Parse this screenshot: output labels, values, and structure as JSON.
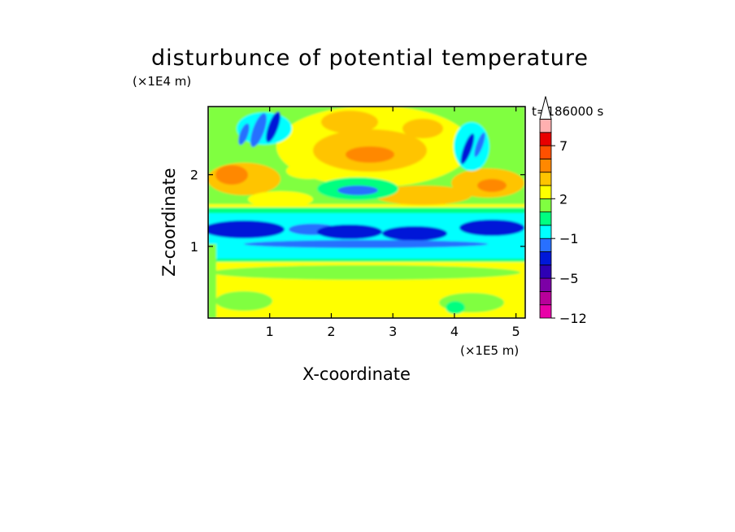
{
  "title": "disturbunce of potential temperature",
  "time_label": "t=186000 s",
  "chart_data": {
    "type": "heatmap",
    "title": "disturbunce of potential temperature",
    "xlabel": "X-coordinate",
    "ylabel": "Z-coordinate",
    "x_scale_label": "(×1E5 m)",
    "y_scale_label": "(×1E4 m)",
    "xlim": [
      0,
      5.15
    ],
    "ylim": [
      0,
      2.95
    ],
    "x_ticks": [
      {
        "value": 1,
        "label": "1"
      },
      {
        "value": 2,
        "label": "2"
      },
      {
        "value": 3,
        "label": "3"
      },
      {
        "value": 4,
        "label": "4"
      },
      {
        "value": 5,
        "label": "5"
      }
    ],
    "y_ticks": [
      {
        "value": 1,
        "label": "1"
      },
      {
        "value": 2,
        "label": "2"
      }
    ],
    "colorbar": {
      "colors": [
        "#e800a8",
        "#b8009a",
        "#7c00a6",
        "#2e00b4",
        "#0018d8",
        "#2870ff",
        "#00ffff",
        "#00ff80",
        "#80ff40",
        "#ffff00",
        "#ffc400",
        "#ff8800",
        "#ff5000",
        "#e80000",
        "#ffb0b0",
        "#ffffff"
      ],
      "tick_labels": [
        {
          "index": 0,
          "label": "−12"
        },
        {
          "index": 3,
          "label": "−5"
        },
        {
          "index": 6,
          "label": "−1"
        },
        {
          "index": 9,
          "label": "2"
        },
        {
          "index": 13,
          "label": "7"
        }
      ],
      "extend": "max"
    },
    "field_summary": [
      {
        "z_range": [
          0.0,
          0.8
        ],
        "dominant_level": "2",
        "note": "yellow near-surface layer"
      },
      {
        "z_range": [
          0.95,
          1.35
        ],
        "dominant_level": "−5",
        "note": "cold band (blue)"
      },
      {
        "z_range": [
          1.5,
          2.9
        ],
        "dominant_level": "2 to 7",
        "note": "warm region with wave patterns"
      }
    ]
  }
}
